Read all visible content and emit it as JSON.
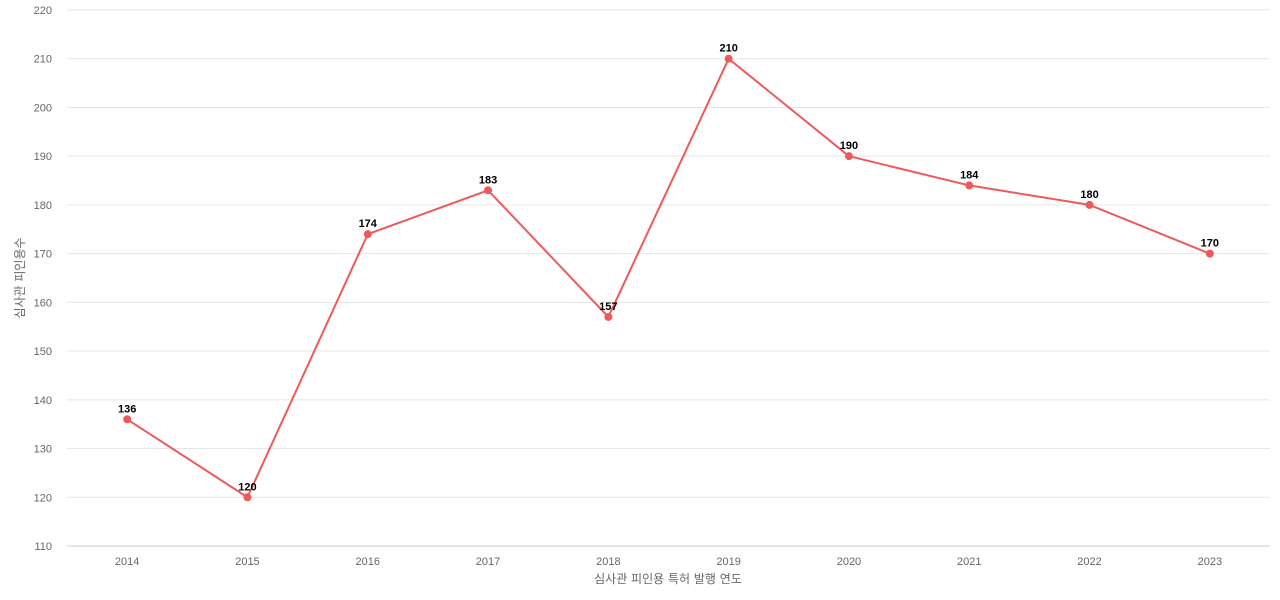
{
  "chart_data": {
    "type": "line",
    "title": "",
    "xlabel": "심사관 피인용 특허 발행 연도",
    "ylabel": "심사관 피인용수",
    "categories": [
      "2014",
      "2015",
      "2016",
      "2017",
      "2018",
      "2019",
      "2020",
      "2021",
      "2022",
      "2023"
    ],
    "series": [
      {
        "values": [
          136,
          120,
          174,
          183,
          157,
          210,
          190,
          184,
          180,
          170
        ]
      }
    ],
    "ylim": [
      110,
      220
    ],
    "yticks": [
      110,
      120,
      130,
      140,
      150,
      160,
      170,
      180,
      190,
      200,
      210,
      220
    ],
    "grid": true,
    "legend": "none",
    "data_labels": true,
    "colors": {
      "line": "#ee5a5a",
      "marker": "#ee5a5a"
    }
  }
}
